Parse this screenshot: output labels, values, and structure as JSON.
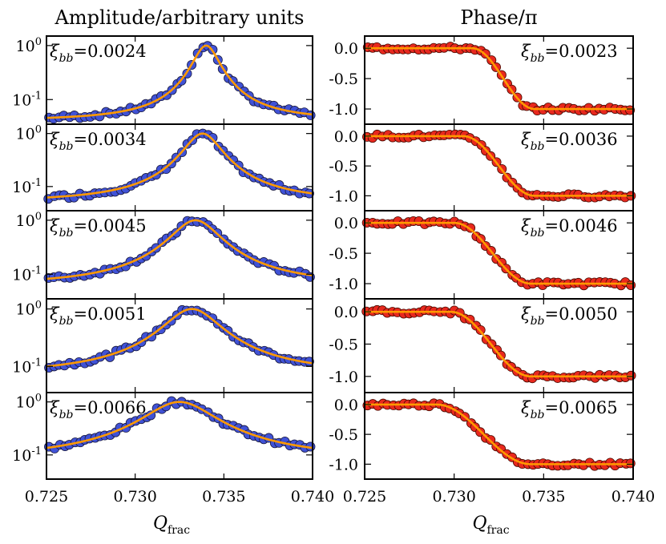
{
  "chart_data": {
    "type": "scatter",
    "x_range": [
      0.725,
      0.74
    ],
    "x_ticks": [
      "0.725",
      "0.730",
      "0.735",
      "0.740"
    ],
    "columns": [
      {
        "title": "Amplitude/arbitrary units",
        "xlabel": "Q",
        "xlabel_sub": "frac",
        "scale": "log",
        "ylim": [
          0.035,
          1.5
        ],
        "y_ticks": [
          {
            "value": 1,
            "base": "10",
            "exp": "0"
          },
          {
            "value": 0.1,
            "base": "10",
            "exp": "-1"
          }
        ],
        "point_color": "#4052d6",
        "fit_color": "#ff9900",
        "panels": [
          {
            "xi_symbol": "ξ",
            "xi_sub": "bb",
            "xi_value": "=0.0024",
            "gamma": 0.0007,
            "center": 0.734,
            "floor": 0.04
          },
          {
            "xi_symbol": "ξ",
            "xi_sub": "bb",
            "xi_value": "=0.0034",
            "gamma": 0.001,
            "center": 0.7338,
            "floor": 0.05
          },
          {
            "xi_symbol": "ξ",
            "xi_sub": "bb",
            "xi_value": "=0.0045",
            "gamma": 0.0013,
            "center": 0.7334,
            "floor": 0.06
          },
          {
            "xi_symbol": "ξ",
            "xi_sub": "bb",
            "xi_value": "=0.0051",
            "gamma": 0.0015,
            "center": 0.7332,
            "floor": 0.07
          },
          {
            "xi_symbol": "ξ",
            "xi_sub": "bb",
            "xi_value": "=0.0066",
            "gamma": 0.0019,
            "center": 0.7325,
            "floor": 0.08
          }
        ]
      },
      {
        "title": "Phase/π",
        "xlabel": "Q",
        "xlabel_sub": "frac",
        "scale": "linear",
        "ylim": [
          -1.25,
          0.2
        ],
        "y_ticks": [
          {
            "value": 0.0,
            "label": "0.0"
          },
          {
            "value": -0.5,
            "label": "-0.5"
          },
          {
            "value": -1.0,
            "label": "-1.0"
          }
        ],
        "point_color": "#e8281e",
        "fit_color": "#ff9900",
        "panels": [
          {
            "xi_symbol": "ξ",
            "xi_sub": "bb",
            "xi_value": "=0.0023",
            "start": 0.731,
            "end": 0.7345
          },
          {
            "xi_symbol": "ξ",
            "xi_sub": "bb",
            "xi_value": "=0.0036",
            "start": 0.7305,
            "end": 0.7345
          },
          {
            "xi_symbol": "ξ",
            "xi_sub": "bb",
            "xi_value": "=0.0046",
            "start": 0.73,
            "end": 0.7343
          },
          {
            "xi_symbol": "ξ",
            "xi_sub": "bb",
            "xi_value": "=0.0050",
            "start": 0.7298,
            "end": 0.7343
          },
          {
            "xi_symbol": "ξ",
            "xi_sub": "bb",
            "xi_value": "=0.0065",
            "start": 0.729,
            "end": 0.7343
          }
        ]
      }
    ]
  }
}
